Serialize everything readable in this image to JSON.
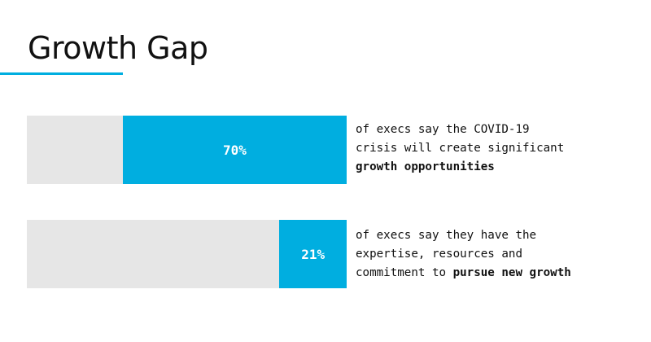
{
  "title": "Growth Gap",
  "colors": {
    "accent": "#00aee0",
    "track": "#e6e6e6",
    "text": "#111111"
  },
  "chart_data": {
    "type": "bar",
    "orientation": "horizontal",
    "title": "Growth Gap",
    "unit": "%",
    "ylim": [
      0,
      100
    ],
    "bars": [
      {
        "value": 70,
        "label": "70%",
        "text_lines": [
          [
            {
              "text": "of execs say the COVID-19",
              "bold": false
            }
          ],
          [
            {
              "text": "crisis will create significant",
              "bold": false
            }
          ],
          [
            {
              "text": "growth opportunities",
              "bold": true
            }
          ]
        ]
      },
      {
        "value": 21,
        "label": "21%",
        "text_lines": [
          [
            {
              "text": "of execs say they have the",
              "bold": false
            }
          ],
          [
            {
              "text": "expertise, resources and",
              "bold": false
            }
          ],
          [
            {
              "text": "commitment to ",
              "bold": false
            },
            {
              "text": "pursue new growth",
              "bold": true
            }
          ]
        ]
      }
    ]
  }
}
